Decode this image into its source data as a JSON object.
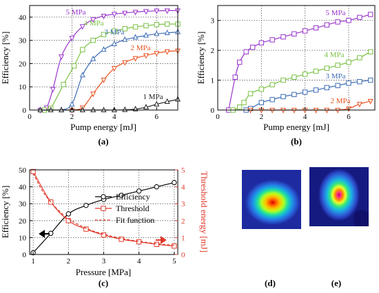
{
  "chart_data": [
    {
      "id": "a",
      "type": "line",
      "panel_label": "(a)",
      "xlabel": "Pump energy [mJ]",
      "ylabel": "Efficiency [%]",
      "xlim": [
        0,
        7
      ],
      "ylim": [
        0,
        45
      ],
      "xticks": [
        0,
        2,
        4,
        6
      ],
      "yticks": [
        0,
        10,
        20,
        30,
        40
      ],
      "grid": true,
      "series": [
        {
          "name": "5 MPa",
          "color": "#9933cc",
          "marker": "triangle-down",
          "x": [
            0.5,
            0.8,
            1.1,
            1.5,
            2.0,
            2.5,
            3.0,
            3.5,
            4.0,
            4.5,
            5.0,
            5.5,
            6.0,
            6.5,
            7.0
          ],
          "y": [
            0,
            1,
            9,
            23,
            31,
            36,
            39,
            40.5,
            41.3,
            41.8,
            42.2,
            42.5,
            42.7,
            42.8,
            42.8
          ]
        },
        {
          "name": "4 MPa",
          "color": "#7ac143",
          "marker": "square",
          "x": [
            0.7,
            1.0,
            1.6,
            2.1,
            2.5,
            3.0,
            3.5,
            4.0,
            4.5,
            5.0,
            5.5,
            6.0,
            6.5,
            7.0
          ],
          "y": [
            0,
            0.8,
            11,
            19,
            26,
            30,
            32.5,
            34,
            35,
            35.8,
            36.3,
            36.8,
            37,
            37
          ]
        },
        {
          "name": "3 MPa",
          "color": "#3b6bb5",
          "marker": "triangle-up",
          "x": [
            1.5,
            2.0,
            2.5,
            3.0,
            3.5,
            4.0,
            4.5,
            5.0,
            5.5,
            6.0,
            6.5,
            7.0
          ],
          "y": [
            0,
            2.5,
            15,
            22,
            26,
            28.5,
            30.3,
            31.3,
            32.1,
            32.8,
            33.2,
            33.6
          ]
        },
        {
          "name": "2 MPa",
          "color": "#e8501e",
          "marker": "triangle-down",
          "x": [
            2.0,
            2.5,
            3.0,
            3.5,
            4.0,
            4.5,
            5.0,
            5.5,
            6.0,
            6.5,
            7.0
          ],
          "y": [
            0,
            1,
            7,
            13,
            18,
            20.5,
            22.3,
            23.5,
            24.5,
            25.2,
            25.5
          ]
        },
        {
          "name": "1 MPa",
          "color": "#222222",
          "marker": "triangle-up",
          "x": [
            0.5,
            1.0,
            1.5,
            2.0,
            2.5,
            3.0,
            3.5,
            4.0,
            4.5,
            5.0,
            5.5,
            6.0,
            6.5,
            7.0
          ],
          "y": [
            0,
            0,
            0,
            0,
            0,
            0,
            0,
            0,
            0.1,
            0.4,
            1.2,
            2.5,
            3.6,
            4.6
          ]
        }
      ],
      "series_labels": [
        "5 MPa",
        "4 MPa",
        "3 MPa",
        "2 MPa",
        "1 MPa"
      ]
    },
    {
      "id": "b",
      "type": "line",
      "panel_label": "(b)",
      "xlabel": "Pump energy [mJ]",
      "ylabel": "Efficiency [%]",
      "xlim": [
        0,
        7.2
      ],
      "ylim": [
        0,
        3.5
      ],
      "xticks": [
        0,
        2,
        4,
        6
      ],
      "yticks": [
        0,
        1,
        2,
        3
      ],
      "grid": true,
      "series": [
        {
          "name": "5 MPa",
          "color": "#9933cc",
          "marker": "square",
          "x": [
            0.5,
            0.8,
            1.0,
            1.3,
            1.6,
            2.0,
            2.5,
            3.0,
            3.5,
            4.0,
            4.5,
            5.0,
            5.5,
            6.0,
            6.5,
            7.0
          ],
          "y": [
            0,
            1.1,
            1.6,
            1.95,
            2.1,
            2.25,
            2.35,
            2.45,
            2.55,
            2.65,
            2.75,
            2.85,
            2.95,
            3.0,
            3.1,
            3.2
          ]
        },
        {
          "name": "4 MPa",
          "color": "#7ac143",
          "marker": "square",
          "x": [
            0.7,
            1.0,
            1.2,
            1.5,
            2.0,
            2.5,
            3.0,
            3.5,
            4.0,
            4.5,
            5.0,
            5.5,
            6.0,
            6.5,
            7.0
          ],
          "y": [
            0,
            0.1,
            0.25,
            0.55,
            0.7,
            0.85,
            1.0,
            1.1,
            1.2,
            1.3,
            1.4,
            1.5,
            1.6,
            1.75,
            1.95
          ]
        },
        {
          "name": "3 MPa",
          "color": "#3b6bb5",
          "marker": "square",
          "x": [
            1.3,
            1.5,
            2.0,
            2.5,
            3.0,
            3.5,
            4.0,
            4.5,
            5.0,
            5.5,
            6.0,
            6.5,
            7.0
          ],
          "y": [
            0,
            0.05,
            0.25,
            0.35,
            0.45,
            0.52,
            0.6,
            0.67,
            0.75,
            0.82,
            0.9,
            0.95,
            1.0
          ]
        },
        {
          "name": "2 MPa",
          "color": "#e8501e",
          "marker": "triangle-down",
          "x": [
            1.5,
            2.0,
            2.5,
            3.0,
            3.5,
            4.0,
            4.5,
            5.0,
            5.5,
            6.0,
            6.5,
            7.0
          ],
          "y": [
            0,
            0,
            0,
            0,
            0,
            0,
            0,
            0,
            0,
            0.05,
            0.2,
            0.3
          ]
        }
      ],
      "series_labels": [
        "5 MPa",
        "4 MPa",
        "3 MPa",
        "2 MPa"
      ]
    },
    {
      "id": "c",
      "type": "line",
      "panel_label": "(c)",
      "xlabel": "Pressure [MPa]",
      "ylabel": "Efficiency [%]",
      "y2label": "Threshold energy [mJ]",
      "xlim": [
        0.9,
        5.1
      ],
      "ylim": [
        0,
        50
      ],
      "y2lim": [
        0,
        5
      ],
      "xticks": [
        1,
        2,
        3,
        4,
        5
      ],
      "yticks": [
        0,
        10,
        20,
        30,
        40,
        50
      ],
      "y2ticks": [
        0,
        1,
        2,
        3,
        4,
        5
      ],
      "grid": true,
      "series": [
        {
          "name": "Efficiency",
          "axis": "left",
          "color": "#000000",
          "marker": "circle",
          "x": [
            1,
            1.5,
            2,
            2.5,
            3,
            3.5,
            4,
            4.5,
            5
          ],
          "y": [
            1,
            12.5,
            24,
            29,
            32.5,
            35,
            37.5,
            40,
            42.5
          ]
        },
        {
          "name": "Threshold",
          "axis": "right",
          "color": "#e0382a",
          "marker": "square",
          "x": [
            1,
            1.5,
            2,
            2.5,
            3,
            3.5,
            4,
            4.5,
            5
          ],
          "y": [
            4.9,
            3.1,
            2.0,
            1.5,
            1.15,
            0.9,
            0.75,
            0.6,
            0.5
          ]
        },
        {
          "name": "Fit function",
          "axis": "right",
          "color": "#e0382a",
          "dashed": true,
          "x": [
            1,
            1.25,
            1.5,
            1.75,
            2,
            2.5,
            3,
            3.5,
            4,
            4.5,
            5
          ],
          "y": [
            4.8,
            3.8,
            3.1,
            2.55,
            2.1,
            1.55,
            1.2,
            0.95,
            0.78,
            0.64,
            0.54
          ]
        }
      ],
      "legend_position": "center-right",
      "legend_entries": [
        "Efficiency",
        "Threshold",
        "Fit function"
      ]
    }
  ],
  "images": {
    "d": {
      "panel_label": "(d)"
    },
    "e": {
      "panel_label": "(e)"
    }
  }
}
